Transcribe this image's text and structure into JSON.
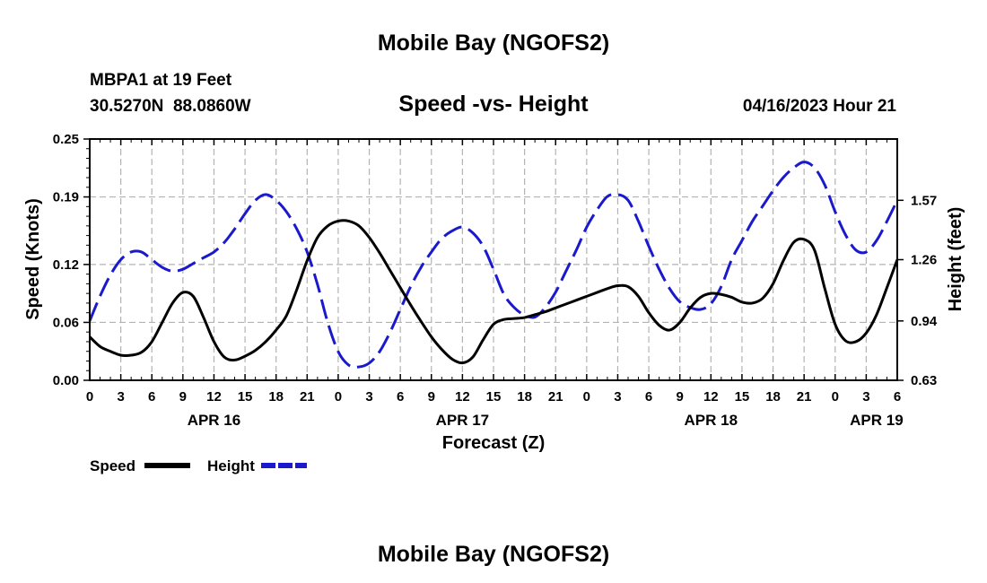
{
  "chart_data": {
    "type": "line",
    "title": "Mobile Bay (NGOFS2)",
    "station": "MBPA1 at 19 Feet",
    "coords": "30.5270N  88.0860W",
    "subtitle": "Speed -vs- Height",
    "datetime": "04/16/2023 Hour 21",
    "footer_title": "Mobile Bay (NGOFS2)",
    "xlabel": "Forecast (Z)",
    "ylabel_left": "Speed (Knots)",
    "ylabel_right": "Height (feet)",
    "x_range_hours": [
      0,
      78
    ],
    "x_tick_step_hours": 3,
    "x_tick_labels": [
      "0",
      "3",
      "6",
      "9",
      "12",
      "15",
      "18",
      "21",
      "0",
      "3",
      "6",
      "9",
      "12",
      "15",
      "18",
      "21",
      "0",
      "3",
      "6",
      "9",
      "12",
      "15",
      "18",
      "21",
      "0",
      "3",
      "6"
    ],
    "date_labels": [
      {
        "hour": 12,
        "label": "APR 16"
      },
      {
        "hour": 36,
        "label": "APR 17"
      },
      {
        "hour": 60,
        "label": "APR 18"
      },
      {
        "hour": 76,
        "label": "APR 19"
      }
    ],
    "ylim_left": [
      0,
      0.25
    ],
    "yticks_left": [
      "0.00",
      "0.06",
      "0.12",
      "0.19",
      "0.25"
    ],
    "ylim_right": [
      0.63,
      1.89
    ],
    "yticks_right": [
      {
        "value": 0.63,
        "label": "0.63"
      },
      {
        "value": 0.94,
        "label": "0.94"
      },
      {
        "value": 1.26,
        "label": "1.26"
      },
      {
        "value": 1.57,
        "label": "1.57"
      }
    ],
    "grid": true,
    "legend": [
      {
        "label": "Speed",
        "color": "#000000",
        "style": "solid"
      },
      {
        "label": "Height",
        "color": "#1a1acc",
        "style": "dashed"
      }
    ],
    "series": [
      {
        "name": "Speed",
        "axis": "left",
        "color": "#000000",
        "style": "solid",
        "x": [
          0,
          1,
          2,
          3,
          4,
          5,
          6,
          7,
          8,
          9,
          10,
          11,
          12,
          13,
          14,
          15,
          16,
          17,
          18,
          19,
          20,
          21,
          22,
          23,
          24,
          25,
          26,
          27,
          28,
          29,
          30,
          31,
          32,
          33,
          34,
          35,
          36,
          37,
          38,
          39,
          40,
          41,
          42,
          43,
          44,
          45,
          46,
          47,
          48,
          49,
          50,
          51,
          52,
          53,
          54,
          55,
          56,
          57,
          58,
          59,
          60,
          61,
          62,
          63,
          64,
          65,
          66,
          67,
          68,
          69,
          70,
          71,
          72,
          73,
          74,
          75,
          76,
          77,
          78
        ],
        "values": [
          0.045,
          0.035,
          0.03,
          0.026,
          0.026,
          0.029,
          0.04,
          0.06,
          0.08,
          0.091,
          0.087,
          0.065,
          0.04,
          0.024,
          0.021,
          0.025,
          0.031,
          0.04,
          0.052,
          0.067,
          0.094,
          0.124,
          0.148,
          0.16,
          0.165,
          0.165,
          0.16,
          0.148,
          0.132,
          0.114,
          0.096,
          0.078,
          0.061,
          0.045,
          0.032,
          0.022,
          0.018,
          0.024,
          0.042,
          0.058,
          0.063,
          0.064,
          0.065,
          0.068,
          0.071,
          0.075,
          0.079,
          0.083,
          0.087,
          0.091,
          0.095,
          0.098,
          0.097,
          0.087,
          0.07,
          0.057,
          0.052,
          0.06,
          0.075,
          0.086,
          0.09,
          0.089,
          0.086,
          0.081,
          0.08,
          0.085,
          0.1,
          0.124,
          0.143,
          0.146,
          0.135,
          0.095,
          0.058,
          0.041,
          0.04,
          0.049,
          0.068,
          0.096,
          0.125
        ]
      },
      {
        "name": "Height",
        "axis": "right",
        "color": "#1a1acc",
        "style": "dashed",
        "x": [
          0,
          1,
          2,
          3,
          4,
          5,
          6,
          7,
          8,
          9,
          10,
          11,
          12,
          13,
          14,
          15,
          16,
          17,
          18,
          19,
          20,
          21,
          22,
          23,
          24,
          25,
          26,
          27,
          28,
          29,
          30,
          31,
          32,
          33,
          34,
          35,
          36,
          37,
          38,
          39,
          40,
          41,
          42,
          43,
          44,
          45,
          46,
          47,
          48,
          49,
          50,
          51,
          52,
          53,
          54,
          55,
          56,
          57,
          58,
          59,
          60,
          61,
          62,
          63,
          64,
          65,
          66,
          67,
          68,
          69,
          70,
          71,
          72,
          73,
          74,
          75,
          76,
          77,
          78
        ],
        "values": [
          0.94,
          1.07,
          1.18,
          1.26,
          1.3,
          1.3,
          1.26,
          1.22,
          1.2,
          1.21,
          1.24,
          1.27,
          1.3,
          1.35,
          1.42,
          1.5,
          1.57,
          1.6,
          1.57,
          1.51,
          1.42,
          1.3,
          1.13,
          0.93,
          0.78,
          0.71,
          0.7,
          0.72,
          0.78,
          0.88,
          1.0,
          1.12,
          1.22,
          1.3,
          1.37,
          1.41,
          1.43,
          1.4,
          1.33,
          1.21,
          1.08,
          1.01,
          0.97,
          0.96,
          1.01,
          1.09,
          1.2,
          1.31,
          1.43,
          1.52,
          1.59,
          1.6,
          1.57,
          1.46,
          1.33,
          1.21,
          1.11,
          1.04,
          1.01,
          1.0,
          1.03,
          1.12,
          1.26,
          1.36,
          1.46,
          1.54,
          1.62,
          1.69,
          1.74,
          1.77,
          1.74,
          1.65,
          1.51,
          1.39,
          1.31,
          1.3,
          1.36,
          1.46,
          1.57
        ]
      }
    ]
  }
}
